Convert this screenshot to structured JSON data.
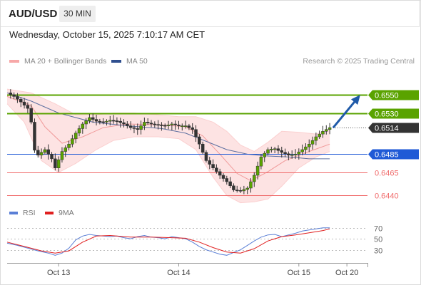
{
  "header": {
    "symbol": "AUD/USD",
    "timeframe": "30 MIN"
  },
  "datetime": "Wednesday, October 15, 2025 7:10:17 AM CET",
  "legend": {
    "bollinger_label": "MA 20 + Bollinger Bands",
    "ma50_label": "MA 50",
    "research": "Research © 2025 Trading Central"
  },
  "rsi_legend": {
    "rsi_label": "RSI",
    "ma_label": "9MA"
  },
  "colors": {
    "resistance": "#5aa300",
    "support_blue": "#1f5ad6",
    "support_red": "#f06b6b",
    "current": "#333333",
    "bollinger_fill": "#fde3e3",
    "ma20": "#f09a9a",
    "ma50": "#5d6fa0",
    "up_candle": "#5aa300",
    "down_candle": "#333333",
    "rsi": "#5a7fd6",
    "rsi_ma": "#e02020",
    "arrow": "#1f5aa8"
  },
  "chart_data": [
    {
      "type": "candlestick",
      "title": "AUD/USD",
      "timeframe": "30 MIN",
      "x_ticks": [
        "Oct 13",
        "Oct 14",
        "Oct 15",
        "Oct 20"
      ],
      "ylim": [
        0.6434,
        0.656
      ],
      "levels": [
        {
          "value": 0.655,
          "label": "0.6550",
          "kind": "resistance"
        },
        {
          "value": 0.653,
          "label": "0.6530",
          "kind": "resistance"
        },
        {
          "value": 0.6514,
          "label": "0.6514",
          "kind": "current"
        },
        {
          "value": 0.6485,
          "label": "0.6485",
          "kind": "support_blue"
        },
        {
          "value": 0.6465,
          "label": "0.6465",
          "kind": "support_red"
        },
        {
          "value": 0.644,
          "label": "0.6440",
          "kind": "support_red"
        }
      ],
      "close_path": [
        [
          0,
          0.6552
        ],
        [
          4,
          0.6548
        ],
        [
          8,
          0.6542
        ],
        [
          12,
          0.6535
        ],
        [
          14,
          0.652
        ],
        [
          15,
          0.6492
        ],
        [
          18,
          0.6484
        ],
        [
          22,
          0.649
        ],
        [
          26,
          0.648
        ],
        [
          28,
          0.647
        ],
        [
          32,
          0.6488
        ],
        [
          36,
          0.6496
        ],
        [
          40,
          0.6508
        ],
        [
          44,
          0.6518
        ],
        [
          48,
          0.6525
        ],
        [
          52,
          0.6521
        ],
        [
          56,
          0.652
        ],
        [
          60,
          0.6522
        ],
        [
          64,
          0.6521
        ],
        [
          68,
          0.6518
        ],
        [
          72,
          0.6514
        ],
        [
          76,
          0.6512
        ],
        [
          80,
          0.652
        ],
        [
          84,
          0.6518
        ],
        [
          88,
          0.6517
        ],
        [
          92,
          0.6516
        ],
        [
          96,
          0.6518
        ],
        [
          100,
          0.6516
        ],
        [
          104,
          0.6516
        ],
        [
          108,
          0.6512
        ],
        [
          112,
          0.6496
        ],
        [
          116,
          0.6478
        ],
        [
          120,
          0.647
        ],
        [
          124,
          0.6462
        ],
        [
          128,
          0.6455
        ],
        [
          132,
          0.6446
        ],
        [
          136,
          0.6445
        ],
        [
          140,
          0.6448
        ],
        [
          144,
          0.6462
        ],
        [
          148,
          0.6482
        ],
        [
          152,
          0.649
        ],
        [
          156,
          0.6491
        ],
        [
          160,
          0.6487
        ],
        [
          164,
          0.6484
        ],
        [
          168,
          0.6485
        ],
        [
          172,
          0.649
        ],
        [
          176,
          0.6496
        ],
        [
          180,
          0.6504
        ],
        [
          184,
          0.651
        ],
        [
          188,
          0.6514
        ]
      ],
      "ma20_path": [
        [
          0,
          0.6548
        ],
        [
          14,
          0.6538
        ],
        [
          22,
          0.6515
        ],
        [
          32,
          0.6497
        ],
        [
          44,
          0.6504
        ],
        [
          56,
          0.6514
        ],
        [
          70,
          0.6518
        ],
        [
          90,
          0.6517
        ],
        [
          104,
          0.6515
        ],
        [
          114,
          0.6505
        ],
        [
          124,
          0.6485
        ],
        [
          134,
          0.6464
        ],
        [
          142,
          0.6456
        ],
        [
          152,
          0.6466
        ],
        [
          162,
          0.6478
        ],
        [
          176,
          0.6488
        ],
        [
          188,
          0.6496
        ]
      ],
      "ma50_path": [
        [
          0,
          0.6552
        ],
        [
          14,
          0.6543
        ],
        [
          30,
          0.653
        ],
        [
          50,
          0.652
        ],
        [
          70,
          0.6516
        ],
        [
          90,
          0.6513
        ],
        [
          104,
          0.6508
        ],
        [
          116,
          0.6499
        ],
        [
          128,
          0.649
        ],
        [
          140,
          0.6485
        ],
        [
          152,
          0.6483
        ],
        [
          164,
          0.6482
        ],
        [
          176,
          0.648
        ],
        [
          188,
          0.648
        ]
      ],
      "bb_upper": [
        [
          0,
          0.6556
        ],
        [
          14,
          0.6552
        ],
        [
          28,
          0.654
        ],
        [
          40,
          0.6528
        ],
        [
          52,
          0.6528
        ],
        [
          62,
          0.653
        ],
        [
          74,
          0.653
        ],
        [
          88,
          0.6528
        ],
        [
          100,
          0.6526
        ],
        [
          110,
          0.6526
        ],
        [
          120,
          0.652
        ],
        [
          128,
          0.651
        ],
        [
          136,
          0.6495
        ],
        [
          144,
          0.6488
        ],
        [
          152,
          0.6498
        ],
        [
          160,
          0.651
        ],
        [
          170,
          0.6509
        ],
        [
          180,
          0.6507
        ],
        [
          188,
          0.6512
        ]
      ],
      "bb_lower": [
        [
          0,
          0.654
        ],
        [
          10,
          0.652
        ],
        [
          20,
          0.6478
        ],
        [
          30,
          0.6465
        ],
        [
          40,
          0.6475
        ],
        [
          52,
          0.649
        ],
        [
          62,
          0.65
        ],
        [
          74,
          0.6504
        ],
        [
          88,
          0.6504
        ],
        [
          100,
          0.6502
        ],
        [
          110,
          0.649
        ],
        [
          120,
          0.646
        ],
        [
          128,
          0.644
        ],
        [
          136,
          0.6432
        ],
        [
          144,
          0.6433
        ],
        [
          152,
          0.6436
        ],
        [
          160,
          0.645
        ],
        [
          170,
          0.647
        ],
        [
          180,
          0.6482
        ],
        [
          188,
          0.6488
        ]
      ],
      "projection": {
        "from": [
          190,
          0.6514
        ],
        "to": [
          205,
          0.6548
        ]
      }
    },
    {
      "type": "line",
      "title": "RSI",
      "ylim": [
        10,
        80
      ],
      "y_ticks": [
        70,
        50,
        30
      ],
      "series": [
        {
          "name": "RSI",
          "points": [
            [
              0,
              42
            ],
            [
              6,
              38
            ],
            [
              12,
              33
            ],
            [
              18,
              28
            ],
            [
              24,
              24
            ],
            [
              28,
              20
            ],
            [
              32,
              24
            ],
            [
              36,
              33
            ],
            [
              40,
              48
            ],
            [
              44,
              55
            ],
            [
              48,
              58
            ],
            [
              52,
              56
            ],
            [
              56,
              55
            ],
            [
              60,
              54
            ],
            [
              64,
              55
            ],
            [
              68,
              52
            ],
            [
              72,
              50
            ],
            [
              76,
              54
            ],
            [
              80,
              56
            ],
            [
              84,
              53
            ],
            [
              88,
              52
            ],
            [
              92,
              50
            ],
            [
              96,
              54
            ],
            [
              100,
              52
            ],
            [
              104,
              50
            ],
            [
              108,
              44
            ],
            [
              112,
              36
            ],
            [
              116,
              30
            ],
            [
              120,
              26
            ],
            [
              124,
              22
            ],
            [
              128,
              20
            ],
            [
              132,
              25
            ],
            [
              136,
              30
            ],
            [
              140,
              38
            ],
            [
              144,
              46
            ],
            [
              148,
              53
            ],
            [
              152,
              57
            ],
            [
              156,
              58
            ],
            [
              160,
              54
            ],
            [
              164,
              57
            ],
            [
              168,
              60
            ],
            [
              172,
              64
            ],
            [
              176,
              66
            ],
            [
              180,
              68
            ],
            [
              184,
              70
            ],
            [
              188,
              70
            ]
          ]
        },
        {
          "name": "9MA",
          "points": [
            [
              0,
              44
            ],
            [
              10,
              36
            ],
            [
              20,
              28
            ],
            [
              28,
              24
            ],
            [
              36,
              28
            ],
            [
              44,
              44
            ],
            [
              52,
              55
            ],
            [
              60,
              56
            ],
            [
              72,
              53
            ],
            [
              84,
              53
            ],
            [
              96,
              52
            ],
            [
              104,
              51
            ],
            [
              112,
              44
            ],
            [
              120,
              34
            ],
            [
              128,
              26
            ],
            [
              136,
              24
            ],
            [
              144,
              32
            ],
            [
              152,
              46
            ],
            [
              160,
              54
            ],
            [
              168,
              57
            ],
            [
              176,
              61
            ],
            [
              184,
              65
            ],
            [
              188,
              68
            ]
          ]
        }
      ]
    }
  ]
}
